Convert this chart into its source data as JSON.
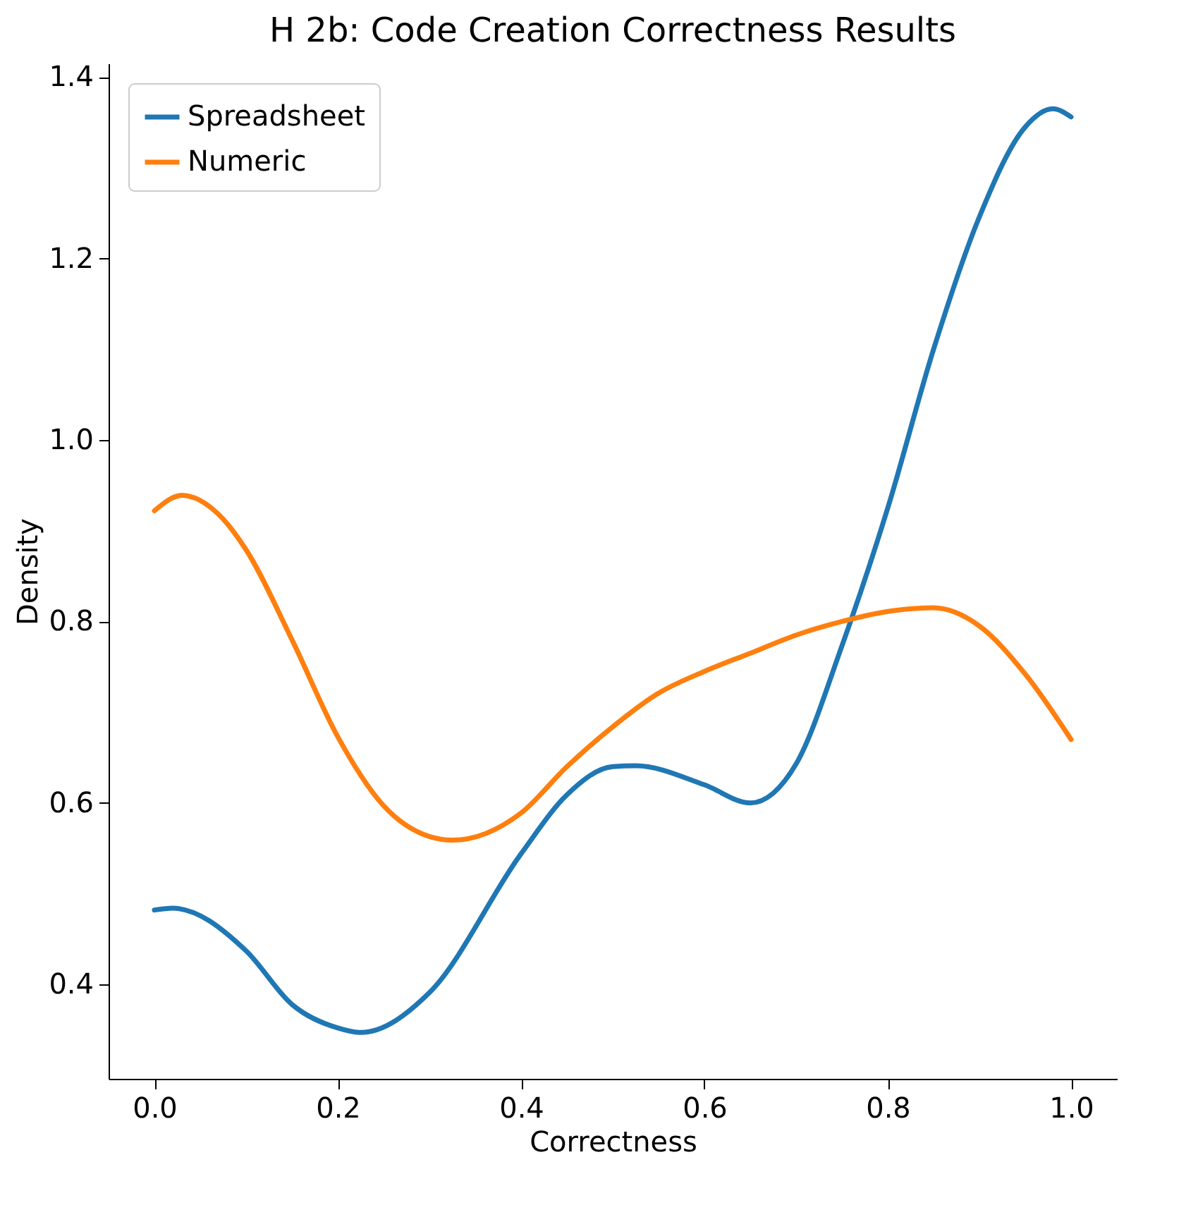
{
  "chart_data": {
    "type": "line",
    "title": "H 2b: Code Creation Correctness Results",
    "xlabel": "Correctness",
    "ylabel": "Density",
    "xlim": [
      -0.05,
      1.05
    ],
    "ylim": [
      0.296,
      1.415
    ],
    "xticks": [
      {
        "value": 0,
        "label": "0.0"
      },
      0.2,
      0.4,
      0.6,
      0.8,
      {
        "value": 1,
        "label": "1.0"
      }
    ],
    "yticks": [
      0.4,
      0.6,
      0.8,
      {
        "value": 1,
        "label": "1.0"
      },
      1.2,
      1.4
    ],
    "grid": false,
    "legend": "top left",
    "line_style": "solid",
    "marker": "none",
    "series": [
      {
        "name": "Spreadsheet",
        "color": "#1f77b4",
        "x": [
          0,
          0.02,
          0.1,
          0.15,
          0.2,
          0.225,
          0.3,
          0.4,
          0.45,
          0.5,
          0.525,
          0.6,
          0.65,
          0.7,
          0.75,
          0.8,
          0.85,
          0.9,
          0.95,
          0.98,
          1.0
        ],
        "values": [
          0.482,
          0.484,
          0.437,
          0.378,
          0.352,
          0.347,
          0.391,
          0.544,
          0.609,
          0.64,
          0.641,
          0.62,
          0.6,
          0.643,
          0.773,
          0.925,
          1.1,
          1.246,
          1.345,
          1.365,
          1.356
        ]
      },
      {
        "name": "Numeric",
        "color": "#ff7f0e",
        "x": [
          0,
          0.03,
          0.07,
          0.1,
          0.15,
          0.2,
          0.25,
          0.3,
          0.325,
          0.4,
          0.45,
          0.5,
          0.55,
          0.6,
          0.65,
          0.7,
          0.75,
          0.8,
          0.85,
          0.9,
          0.95,
          1.0
        ],
        "values": [
          0.922,
          0.939,
          0.918,
          0.879,
          0.78,
          0.673,
          0.597,
          0.563,
          0.559,
          0.589,
          0.64,
          0.684,
          0.721,
          0.745,
          0.765,
          0.785,
          0.8,
          0.811,
          0.815,
          0.795,
          0.742,
          0.67
        ]
      }
    ]
  }
}
